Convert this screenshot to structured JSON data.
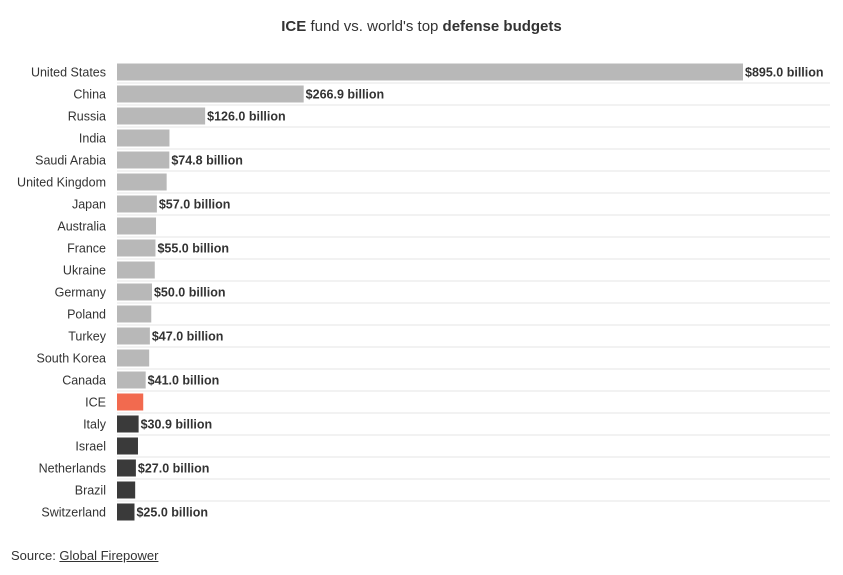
{
  "chart_data": {
    "type": "bar",
    "orientation": "horizontal",
    "title_parts": {
      "bold_1": "ICE",
      "plain": " fund vs. world's top ",
      "bold_2": "defense budgets"
    },
    "title": "ICE fund vs. world's top defense budgets",
    "categories": [
      "United States",
      "China",
      "Russia",
      "India",
      "Saudi Arabia",
      "United Kingdom",
      "Japan",
      "Australia",
      "France",
      "Ukraine",
      "Germany",
      "Poland",
      "Turkey",
      "South Korea",
      "Canada",
      "ICE",
      "Italy",
      "Israel",
      "Netherlands",
      "Brazil",
      "Switzerland"
    ],
    "values": [
      895.0,
      266.9,
      126.0,
      75.0,
      74.8,
      71.0,
      57.0,
      55.8,
      55.0,
      54.0,
      50.0,
      49.0,
      47.0,
      46.0,
      41.0,
      37.5,
      30.9,
      30.0,
      27.0,
      26.0,
      25.0
    ],
    "labels": [
      "$895.0 billion",
      "$266.9 billion",
      "$126.0 billion",
      "",
      "$74.8 billion",
      "",
      "$57.0 billion",
      "",
      "$55.0 billion",
      "",
      "$50.0 billion",
      "",
      "$47.0 billion",
      "",
      "$41.0 billion",
      "",
      "$30.9 billion",
      "",
      "$27.0 billion",
      "",
      "$25.0 billion"
    ],
    "bar_groups": [
      "top",
      "top",
      "top",
      "top",
      "top",
      "top",
      "top",
      "top",
      "top",
      "top",
      "top",
      "top",
      "top",
      "top",
      "top",
      "ice",
      "below",
      "below",
      "below",
      "below",
      "below"
    ],
    "colors": {
      "top": "#b8b8b8",
      "ice": "#f26a4f",
      "below": "#3a3a3a",
      "gridline": "#e6e6e6"
    },
    "xlim": [
      0,
      895
    ],
    "xlabel": "",
    "ylabel": ""
  },
  "source": {
    "prefix": "Source: ",
    "link_text": "Global Firepower"
  }
}
